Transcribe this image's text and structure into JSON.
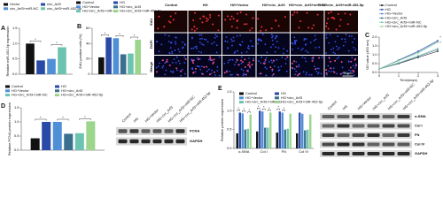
{
  "chart_data": [
    {
      "type": "bar",
      "panel": "A",
      "ylabel": "Relative miR-452-5p expression",
      "categories": [
        null
      ],
      "series": [
        {
          "name": "Vector",
          "color": "#111111",
          "values": [
            1.0
          ]
        },
        {
          "name": "circ_Arf3",
          "color": "#2a4aa8",
          "values": [
            0.45
          ]
        },
        {
          "name": "circ_Arf3+miR-NC",
          "color": "#4f8fd6",
          "values": [
            0.5
          ]
        },
        {
          "name": "circ_Arf3+miR-452-5p",
          "color": "#6cc3b0",
          "values": [
            0.88
          ]
        }
      ],
      "ylim": [
        0,
        1.5
      ],
      "yticks": [
        {
          "value": 0,
          "label": "0.0"
        },
        {
          "value": 0.5,
          "label": "0.5"
        },
        {
          "value": 1,
          "label": "1.0"
        },
        {
          "value": 1.5,
          "label": "1.5"
        }
      ],
      "stars": [
        "*",
        "*"
      ]
    },
    {
      "type": "bar",
      "panel": "B",
      "ylabel": "EdU-positive cells (%)",
      "categories": [
        null
      ],
      "series": [
        {
          "name": "Control",
          "color": "#111111",
          "values": [
            22
          ]
        },
        {
          "name": "HG",
          "color": "#2a4aa8",
          "values": [
            48
          ]
        },
        {
          "name": "HG+Vector",
          "color": "#4f8fd6",
          "values": [
            47
          ]
        },
        {
          "name": "HG+circ_Arf3",
          "color": "#3b6f8f",
          "values": [
            26
          ]
        },
        {
          "name": "HG+circ_Arf3+miR-NC",
          "color": "#6cc3b0",
          "values": [
            27
          ]
        },
        {
          "name": "HG+circ_Arf3+miR-452-5p",
          "color": "#9bd68c",
          "values": [
            45
          ]
        }
      ],
      "ylim": [
        0,
        60
      ],
      "yticks": [
        0,
        20,
        40,
        60
      ],
      "stars": [
        "*",
        "*",
        "*"
      ]
    },
    {
      "type": "line",
      "panel": "C",
      "ylabel": "OD value (450 nm)",
      "xlabel": "Time(days)",
      "x": [
        0,
        1,
        2,
        3
      ],
      "xlim": [
        0,
        3
      ],
      "xticks": [
        0,
        1,
        2,
        3
      ],
      "series": [
        {
          "name": "Control",
          "color": "#111111",
          "values": [
            0.2,
            0.5,
            0.85,
            1.2
          ]
        },
        {
          "name": "HG",
          "color": "#2a4aa8",
          "values": [
            0.2,
            0.7,
            1.2,
            1.8
          ]
        },
        {
          "name": "HG+Vector",
          "color": "#4f8fd6",
          "values": [
            0.2,
            0.68,
            1.15,
            1.75
          ]
        },
        {
          "name": "HG+circ_Arf3",
          "color": "#3b6f8f",
          "values": [
            0.2,
            0.52,
            0.9,
            1.3
          ]
        },
        {
          "name": "HG+circ_Arf3+miR-NC",
          "color": "#6cc3b0",
          "values": [
            0.2,
            0.55,
            0.95,
            1.35
          ]
        },
        {
          "name": "HG+circ_Arf3+miR-452-5p",
          "color": "#9bd68c",
          "values": [
            0.2,
            0.66,
            1.1,
            1.7
          ]
        }
      ],
      "ylim": [
        0,
        2
      ],
      "yticks": [
        {
          "value": 0,
          "label": "0.0"
        },
        {
          "value": 0.5,
          "label": "0.5"
        },
        {
          "value": 1,
          "label": "1.0"
        },
        {
          "value": 1.5,
          "label": "1.5"
        },
        {
          "value": 2,
          "label": "2.0"
        }
      ],
      "stars": [
        "*",
        "*"
      ]
    },
    {
      "type": "bar",
      "panel": "D",
      "ylabel": "Relative PCNA protein expression",
      "categories": [
        null
      ],
      "series": [
        {
          "name": "Control",
          "color": "#111111",
          "values": [
            0.42
          ]
        },
        {
          "name": "HG",
          "color": "#2a4aa8",
          "values": [
            1.0
          ]
        },
        {
          "name": "HG+Vector",
          "color": "#4f8fd6",
          "values": [
            1.0
          ]
        },
        {
          "name": "HG+circ_Arf3",
          "color": "#3b6f8f",
          "values": [
            0.58
          ]
        },
        {
          "name": "HG+circ_Arf3+miR-NC",
          "color": "#6cc3b0",
          "values": [
            0.6
          ]
        },
        {
          "name": "HG+circ_Arf3+miR-452-5p",
          "color": "#9bd68c",
          "values": [
            1.02
          ]
        }
      ],
      "ylim": [
        0,
        1.5
      ],
      "yticks": [
        {
          "value": 0,
          "label": "0.0"
        },
        {
          "value": 0.5,
          "label": "0.5"
        },
        {
          "value": 1,
          "label": "1.0"
        },
        {
          "value": 1.5,
          "label": "1.5"
        }
      ],
      "stars": [
        "*",
        "*",
        "*"
      ]
    },
    {
      "type": "bar",
      "panel": "E",
      "ylabel": "Relative protein expression",
      "categories": [
        "α-SMA",
        "Col I",
        "FN",
        "Col IV"
      ],
      "series": [
        {
          "name": "Control",
          "color": "#111111",
          "values": [
            0.4,
            0.45,
            0.42,
            0.4
          ]
        },
        {
          "name": "HG",
          "color": "#2a4aa8",
          "values": [
            0.95,
            1.0,
            0.98,
            0.95
          ]
        },
        {
          "name": "HG+Vector",
          "color": "#4f8fd6",
          "values": [
            0.93,
            0.98,
            0.95,
            0.92
          ]
        },
        {
          "name": "HG+circ_Arf3",
          "color": "#3b6f8f",
          "values": [
            0.5,
            0.55,
            0.5,
            0.48
          ]
        },
        {
          "name": "HG+circ_Arf3+miR-NC",
          "color": "#6cc3b0",
          "values": [
            0.52,
            0.55,
            0.52,
            0.5
          ]
        },
        {
          "name": "HG+circ_Arf3+miR-452-5p",
          "color": "#9bd68c",
          "values": [
            0.9,
            0.95,
            0.92,
            0.9
          ]
        }
      ],
      "ylim": [
        0,
        1.5
      ],
      "yticks": [
        {
          "value": 0,
          "label": "0.0"
        },
        {
          "value": 0.5,
          "label": "0.5"
        },
        {
          "value": 1,
          "label": "1.0"
        },
        {
          "value": 1.5,
          "label": "1.5"
        }
      ],
      "stars": [
        "*",
        "*",
        "*",
        "*",
        "*",
        "*",
        "*",
        "*"
      ]
    }
  ],
  "edu_images": {
    "columns": [
      "Control",
      "HG",
      "HG+Vector",
      "HG+circ_Arf3",
      "HG+circ_Arf3+miR-NC",
      "HG+circ_Arf3+miR-452-5p"
    ],
    "rows": [
      "EdU",
      "DAPI",
      "Merge"
    ],
    "scale": "50μm"
  },
  "blot_d": {
    "lanes": [
      "Control",
      "HG",
      "HG+Vector",
      "HG+circ_Arf3",
      "HG+circ_Arf3+miR-NC",
      "HG+circ_Arf3+miR-452-5p"
    ],
    "bands": [
      "PCNA",
      "GAPDH"
    ]
  },
  "blot_e": {
    "lanes": [
      "Control",
      "HG",
      "HG+Vector",
      "HG+circ_Arf3",
      "HG+circ_Arf3+miR-NC",
      "HG+circ_Arf3+miR-452-5p"
    ],
    "bands": [
      "α-SMA",
      "Col I",
      "FN",
      "Col IV",
      "GAPDH"
    ]
  }
}
